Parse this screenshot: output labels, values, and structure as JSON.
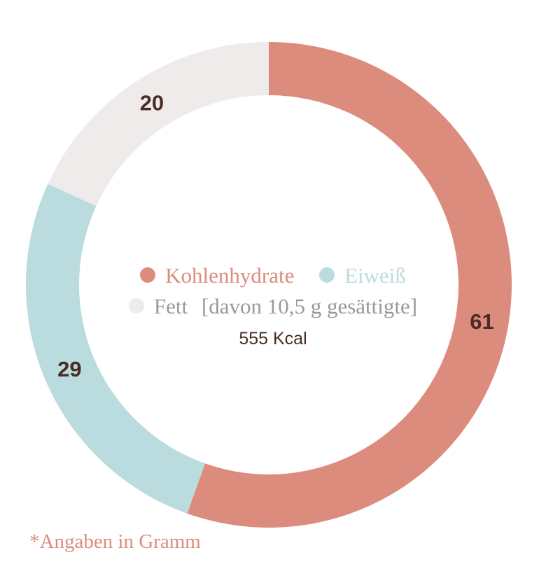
{
  "chart_data": {
    "type": "pie",
    "variant": "donut",
    "categories": [
      "Kohlenhydrate",
      "Eiweiß",
      "Fett"
    ],
    "values": [
      61,
      29,
      20
    ],
    "colors": [
      "#dc8c7d",
      "#badcde",
      "#efebea"
    ],
    "legend": [
      {
        "name": "Kohlenhydrate",
        "suffix": "",
        "color": "#dc8c7d"
      },
      {
        "name": "Eiweiß",
        "suffix": "",
        "color": "#badcde"
      },
      {
        "name": "Fett",
        "suffix": "[davon 10,5 g gesättigte]",
        "color": "#efebea"
      }
    ],
    "center_text": "555 Kcal",
    "legend_placement": "center"
  },
  "footnote": "*Angaben in Gramm"
}
